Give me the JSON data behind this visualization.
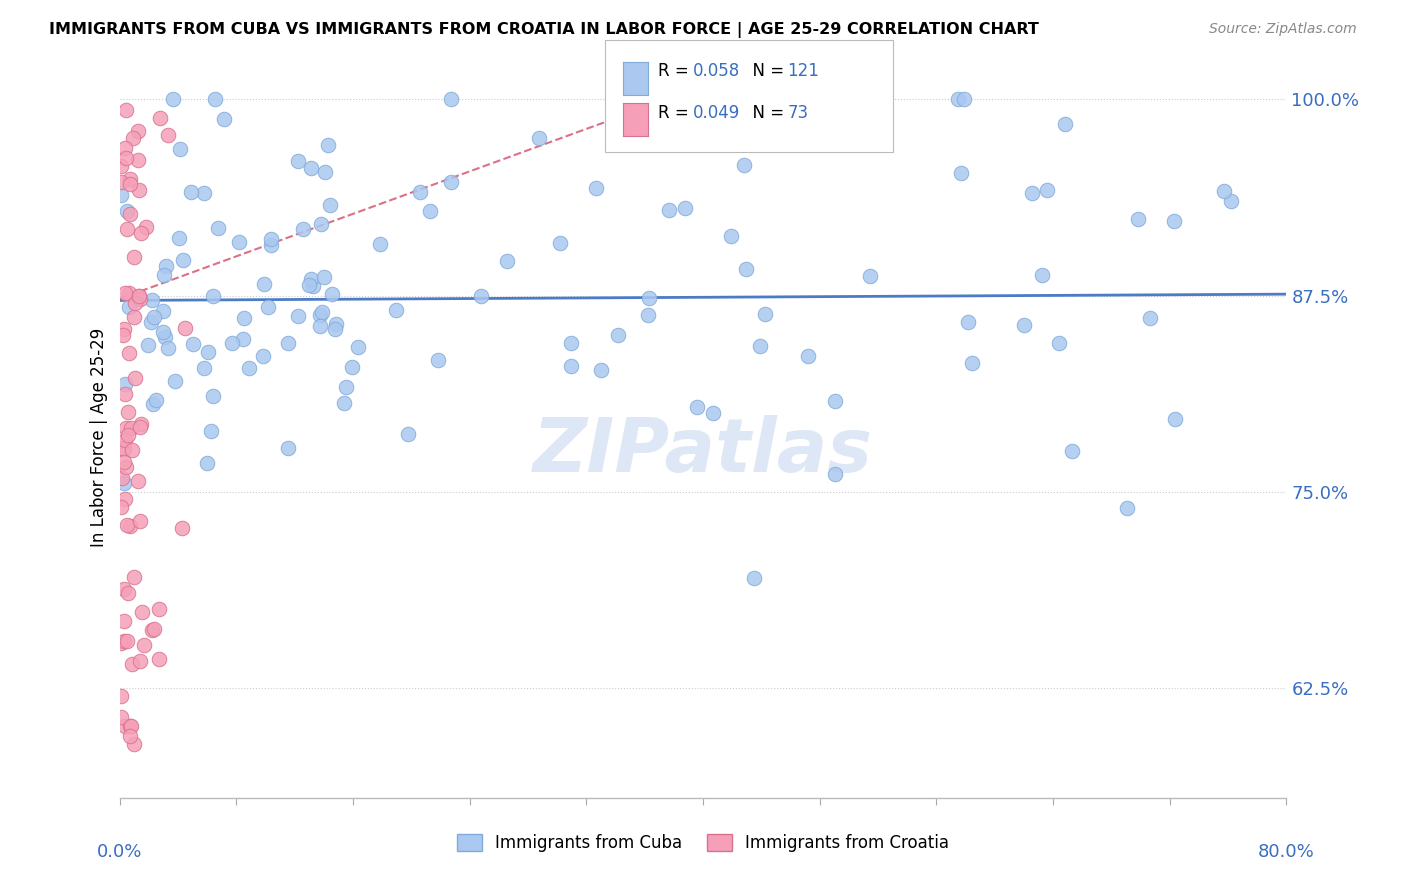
{
  "title": "IMMIGRANTS FROM CUBA VS IMMIGRANTS FROM CROATIA IN LABOR FORCE | AGE 25-29 CORRELATION CHART",
  "source": "Source: ZipAtlas.com",
  "ylabel": "In Labor Force | Age 25-29",
  "xlim": [
    0.0,
    0.8
  ],
  "ylim": [
    0.555,
    1.015
  ],
  "cuba_color": "#aac8f0",
  "cuba_edge_color": "#80aad8",
  "croatia_color": "#f5a0b8",
  "croatia_edge_color": "#d87090",
  "cuba_R": 0.058,
  "cuba_N": 121,
  "croatia_R": 0.049,
  "croatia_N": 73,
  "trend_cuba_color": "#3a6ec0",
  "trend_croatia_color": "#d04060",
  "legend_color": "#3a6ec0",
  "watermark_color": "#c8d8f0",
  "yticks": [
    0.625,
    0.75,
    0.875,
    1.0
  ],
  "ytick_labels": [
    "62.5%",
    "75.0%",
    "87.5%",
    "100.0%"
  ]
}
